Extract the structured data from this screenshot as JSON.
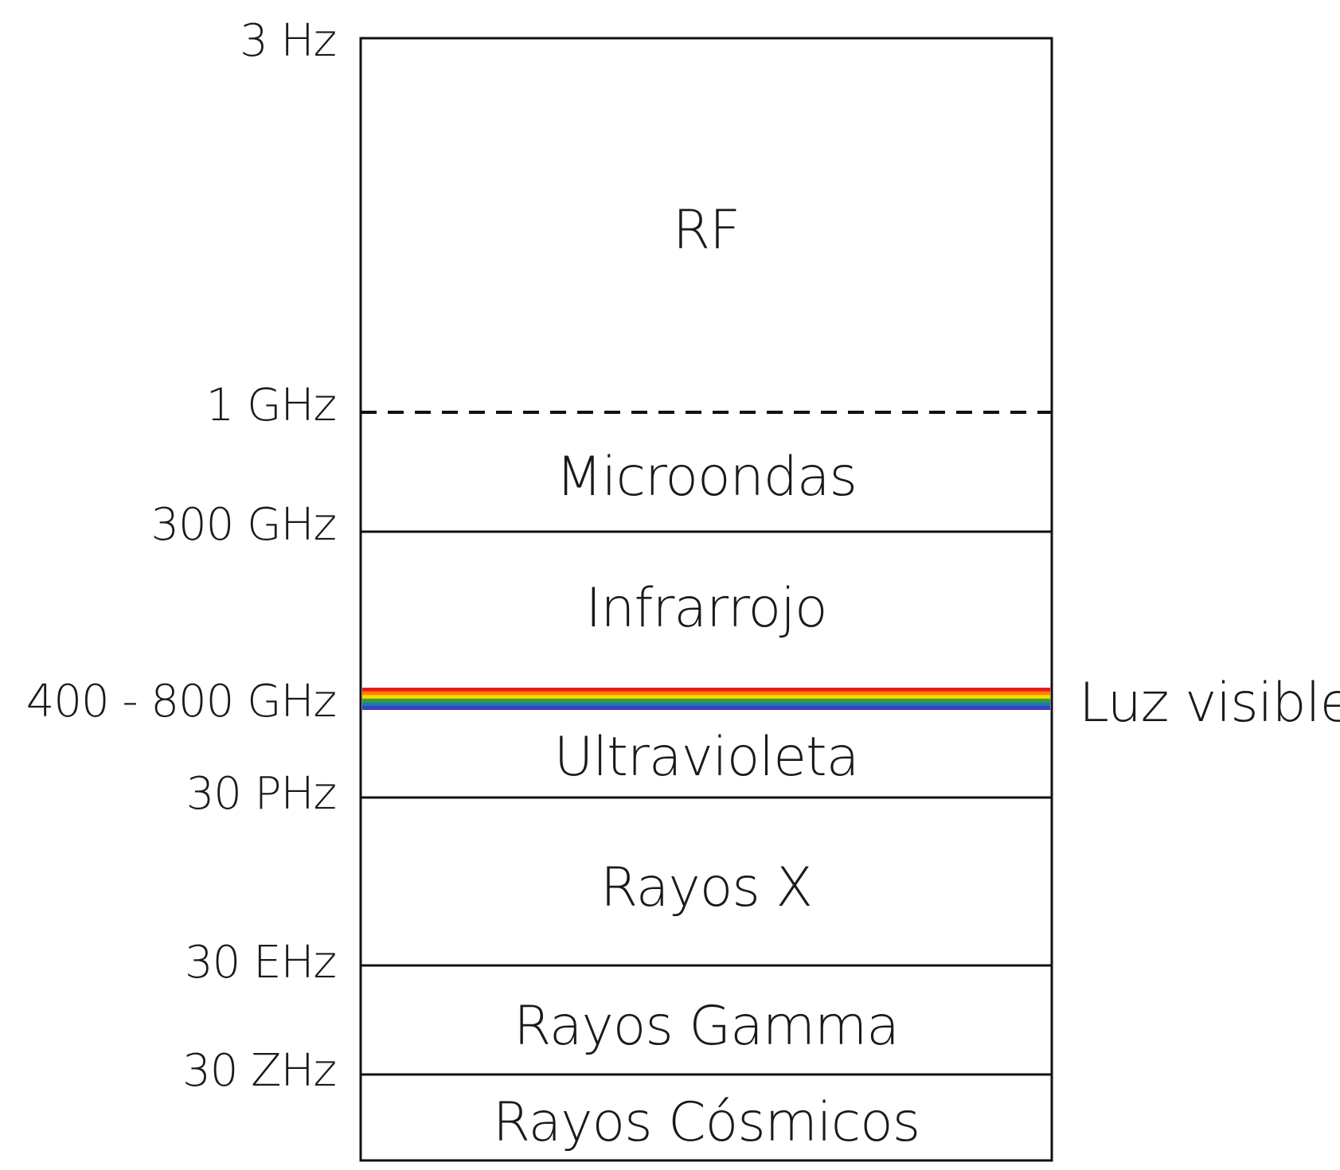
{
  "frequency_labels": {
    "top": "3 Hz",
    "rf_microwave": "1 GHz",
    "microwave_infrared": "300 GHz",
    "visible": "400 - 800 GHz",
    "ultraviolet_xray": "30 PHz",
    "xray_gamma": "30 EHz",
    "gamma_cosmic": "30 ZHz"
  },
  "bands": {
    "rf": "RF",
    "microwave": "Microondas",
    "infrared": "Infrarrojo",
    "ultraviolet": "Ultravioleta",
    "xray": "Rayos X",
    "gamma": "Rayos Gamma",
    "cosmic": "Rayos Cósmicos"
  },
  "visible_light": {
    "label": "Luz visible",
    "spectrum_colors": [
      "#e31a1c",
      "#ff7f00",
      "#ffd700",
      "#33a02c",
      "#1f78b4",
      "#3f3fbf"
    ]
  },
  "colors": {
    "line": "#111111",
    "text": "#1a1a1a"
  }
}
